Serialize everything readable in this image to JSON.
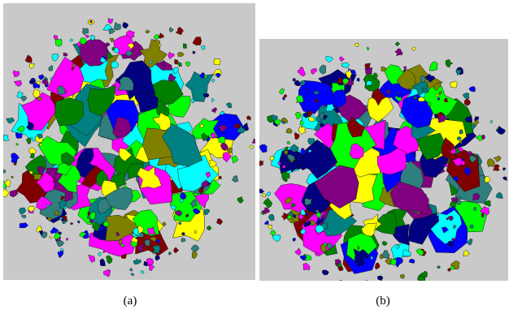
{
  "figure": {
    "panels": [
      {
        "label": "(a)"
      },
      {
        "label": "(b)"
      }
    ]
  },
  "colors": {
    "background": "#c9c9c9",
    "palette": [
      "#0000ff",
      "#00ff00",
      "#ffff00",
      "#00ffff",
      "#ff00ff",
      "#800000",
      "#008000",
      "#000080",
      "#808000",
      "#800080",
      "#008080",
      "#2f7f7f"
    ]
  }
}
